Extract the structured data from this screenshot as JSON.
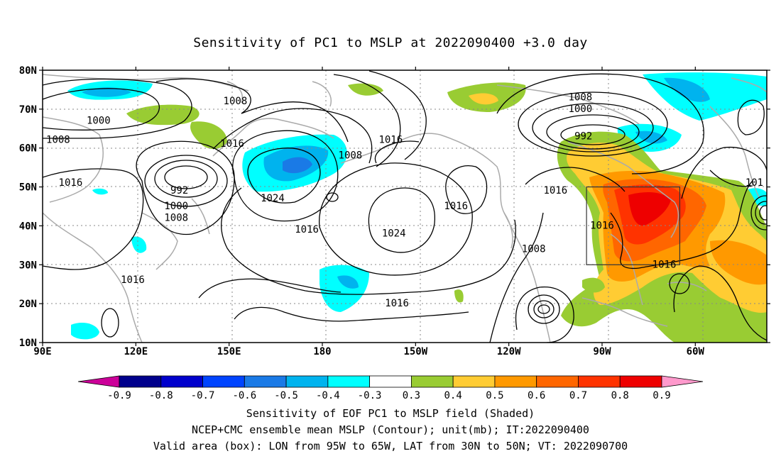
{
  "title": "Sensitivity of PC1 to MSLP at 2022090400 +3.0 day",
  "captions": [
    "Sensitivity of EOF PC1 to MSLP field (Shaded)",
    "NCEP+CMC ensemble mean MSLP (Contour); unit(mb); IT:2022090400",
    "Valid area (box): LON from 95W to 65W, LAT from 30N to 50N; VT: 2022090700"
  ],
  "lat_labels": [
    "80N",
    "70N",
    "60N",
    "50N",
    "40N",
    "30N",
    "20N",
    "10N"
  ],
  "lon_labels": [
    "90E",
    "120E",
    "150E",
    "180",
    "150W",
    "120W",
    "90W",
    "60W"
  ],
  "colorbar": {
    "labels": [
      "-0.9",
      "-0.8",
      "-0.7",
      "-0.6",
      "-0.5",
      "-0.4",
      "-0.3",
      "0.3",
      "0.4",
      "0.5",
      "0.6",
      "0.7",
      "0.8",
      "0.9"
    ],
    "colors": [
      "#cc0099",
      "#00008c",
      "#0000cc",
      "#0044ff",
      "#1a7ae6",
      "#00b3ee",
      "#00ffff",
      "#ffffff",
      "#99cc33",
      "#ffcc33",
      "#ff9900",
      "#ff6600",
      "#ff3300",
      "#ee0000",
      "#ff99cc"
    ]
  },
  "contour_labels": [
    {
      "text": "1008",
      "lon": 152,
      "lat": 72
    },
    {
      "text": "1000",
      "lon": 108,
      "lat": 67
    },
    {
      "text": "1008",
      "lon": 95,
      "lat": 62
    },
    {
      "text": "1016",
      "lon": 151,
      "lat": 61
    },
    {
      "text": "1016",
      "lon": 99,
      "lat": 51
    },
    {
      "text": "992",
      "lon": 134,
      "lat": 49
    },
    {
      "text": "1000",
      "lon": 133,
      "lat": 45
    },
    {
      "text": "1008",
      "lon": 133,
      "lat": 42
    },
    {
      "text": "1024",
      "lon": 164,
      "lat": 47
    },
    {
      "text": "1008",
      "lon": 189,
      "lat": 58
    },
    {
      "text": "1016",
      "lon": 202,
      "lat": 62
    },
    {
      "text": "1016",
      "lon": 175,
      "lat": 39
    },
    {
      "text": "1024",
      "lon": 203,
      "lat": 38
    },
    {
      "text": "1016",
      "lon": 223,
      "lat": 45
    },
    {
      "text": "1016",
      "lon": 204,
      "lat": 20
    },
    {
      "text": "1016",
      "lon": 119,
      "lat": 26
    },
    {
      "text": "1008",
      "lon": 263,
      "lat": 73
    },
    {
      "text": "1000",
      "lon": 263,
      "lat": 70
    },
    {
      "text": "992",
      "lon": 264,
      "lat": 63
    },
    {
      "text": "1016",
      "lon": 255,
      "lat": 49
    },
    {
      "text": "1016",
      "lon": 270,
      "lat": 40
    },
    {
      "text": "1008",
      "lon": 248,
      "lat": 34
    },
    {
      "text": "1016",
      "lon": 290,
      "lat": 30
    },
    {
      "text": "101",
      "lon": 319,
      "lat": 51
    }
  ],
  "valid_box": {
    "lon_min": 265,
    "lon_max": 295,
    "lat_min": 30,
    "lat_max": 50
  },
  "map_extent": {
    "lon_min": 90,
    "lon_max": 323,
    "lat_min": 10,
    "lat_max": 80
  }
}
